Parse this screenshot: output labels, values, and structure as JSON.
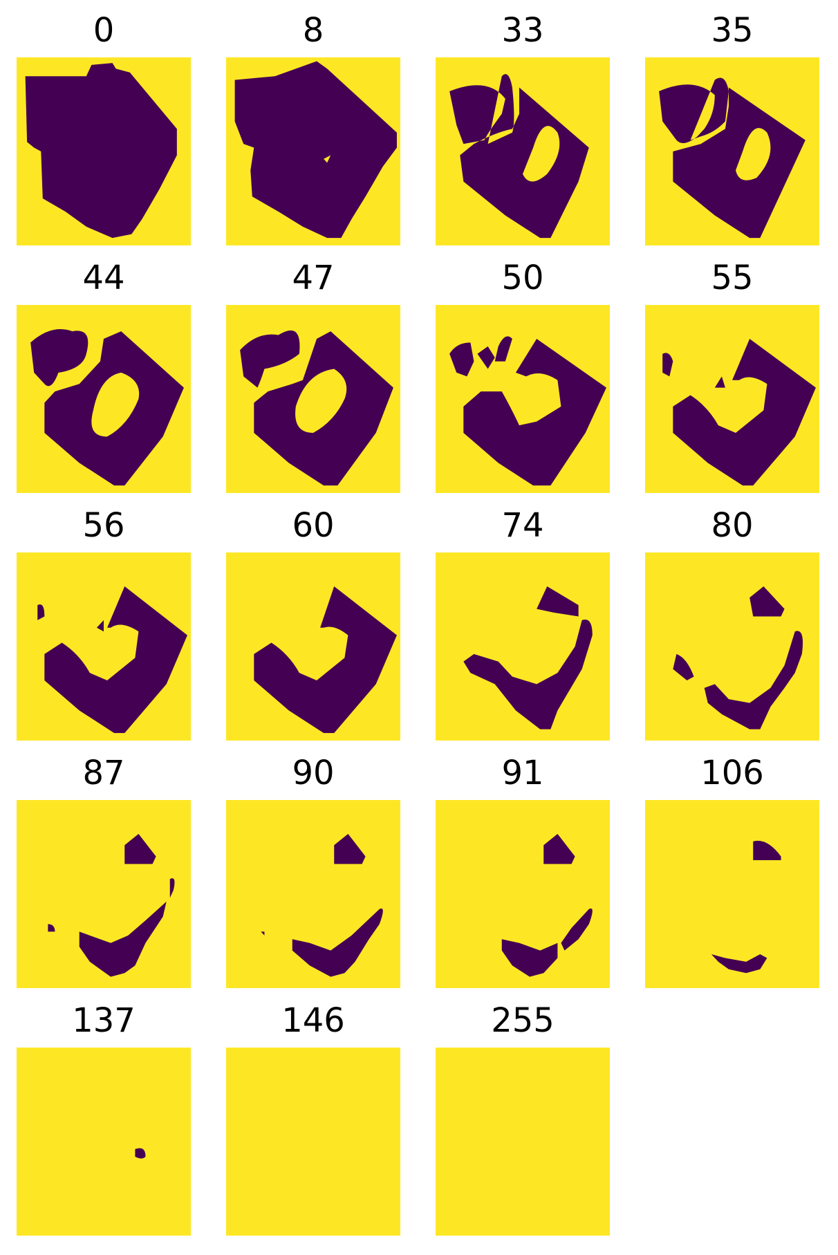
{
  "colors": {
    "background": "#fde725",
    "foreground": "#440154"
  },
  "panels": [
    {
      "title": "0"
    },
    {
      "title": "8"
    },
    {
      "title": "33"
    },
    {
      "title": "35"
    },
    {
      "title": "44"
    },
    {
      "title": "47"
    },
    {
      "title": "50"
    },
    {
      "title": "55"
    },
    {
      "title": "56"
    },
    {
      "title": "60"
    },
    {
      "title": "74"
    },
    {
      "title": "80"
    },
    {
      "title": "87"
    },
    {
      "title": "90"
    },
    {
      "title": "91"
    },
    {
      "title": "106"
    },
    {
      "title": "137"
    },
    {
      "title": "146"
    },
    {
      "title": "255"
    }
  ]
}
